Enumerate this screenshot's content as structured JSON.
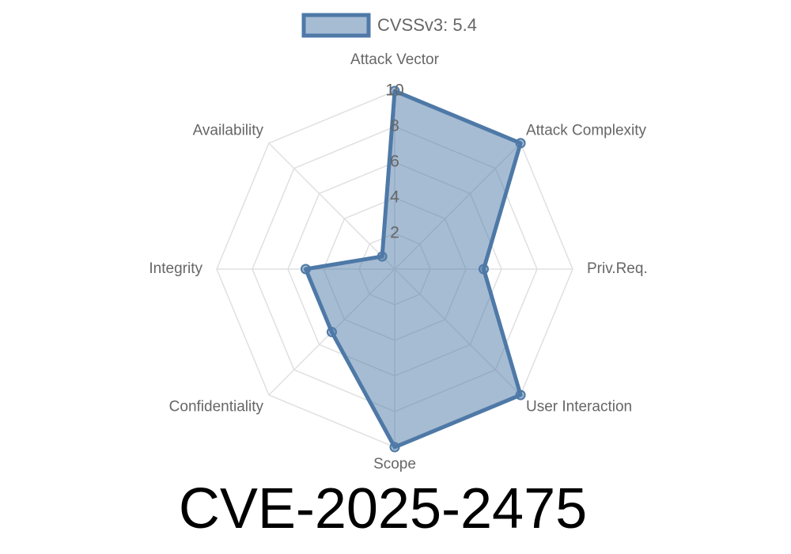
{
  "chart_data": {
    "type": "radar",
    "title": "CVE-2025-2475",
    "categories": [
      "Attack Vector",
      "Attack Complexity",
      "Priv.Req.",
      "User Interaction",
      "Scope",
      "Confidentiality",
      "Integrity",
      "Availability"
    ],
    "series": [
      {
        "name": "CVSSv3: 5.4",
        "color": "#4e79a7",
        "values": [
          10,
          10,
          5,
          10,
          10,
          5,
          5,
          1
        ]
      }
    ],
    "rlim": [
      0,
      10
    ],
    "rticks": [
      2,
      4,
      6,
      8,
      10
    ],
    "grid": true,
    "legend": "top"
  }
}
